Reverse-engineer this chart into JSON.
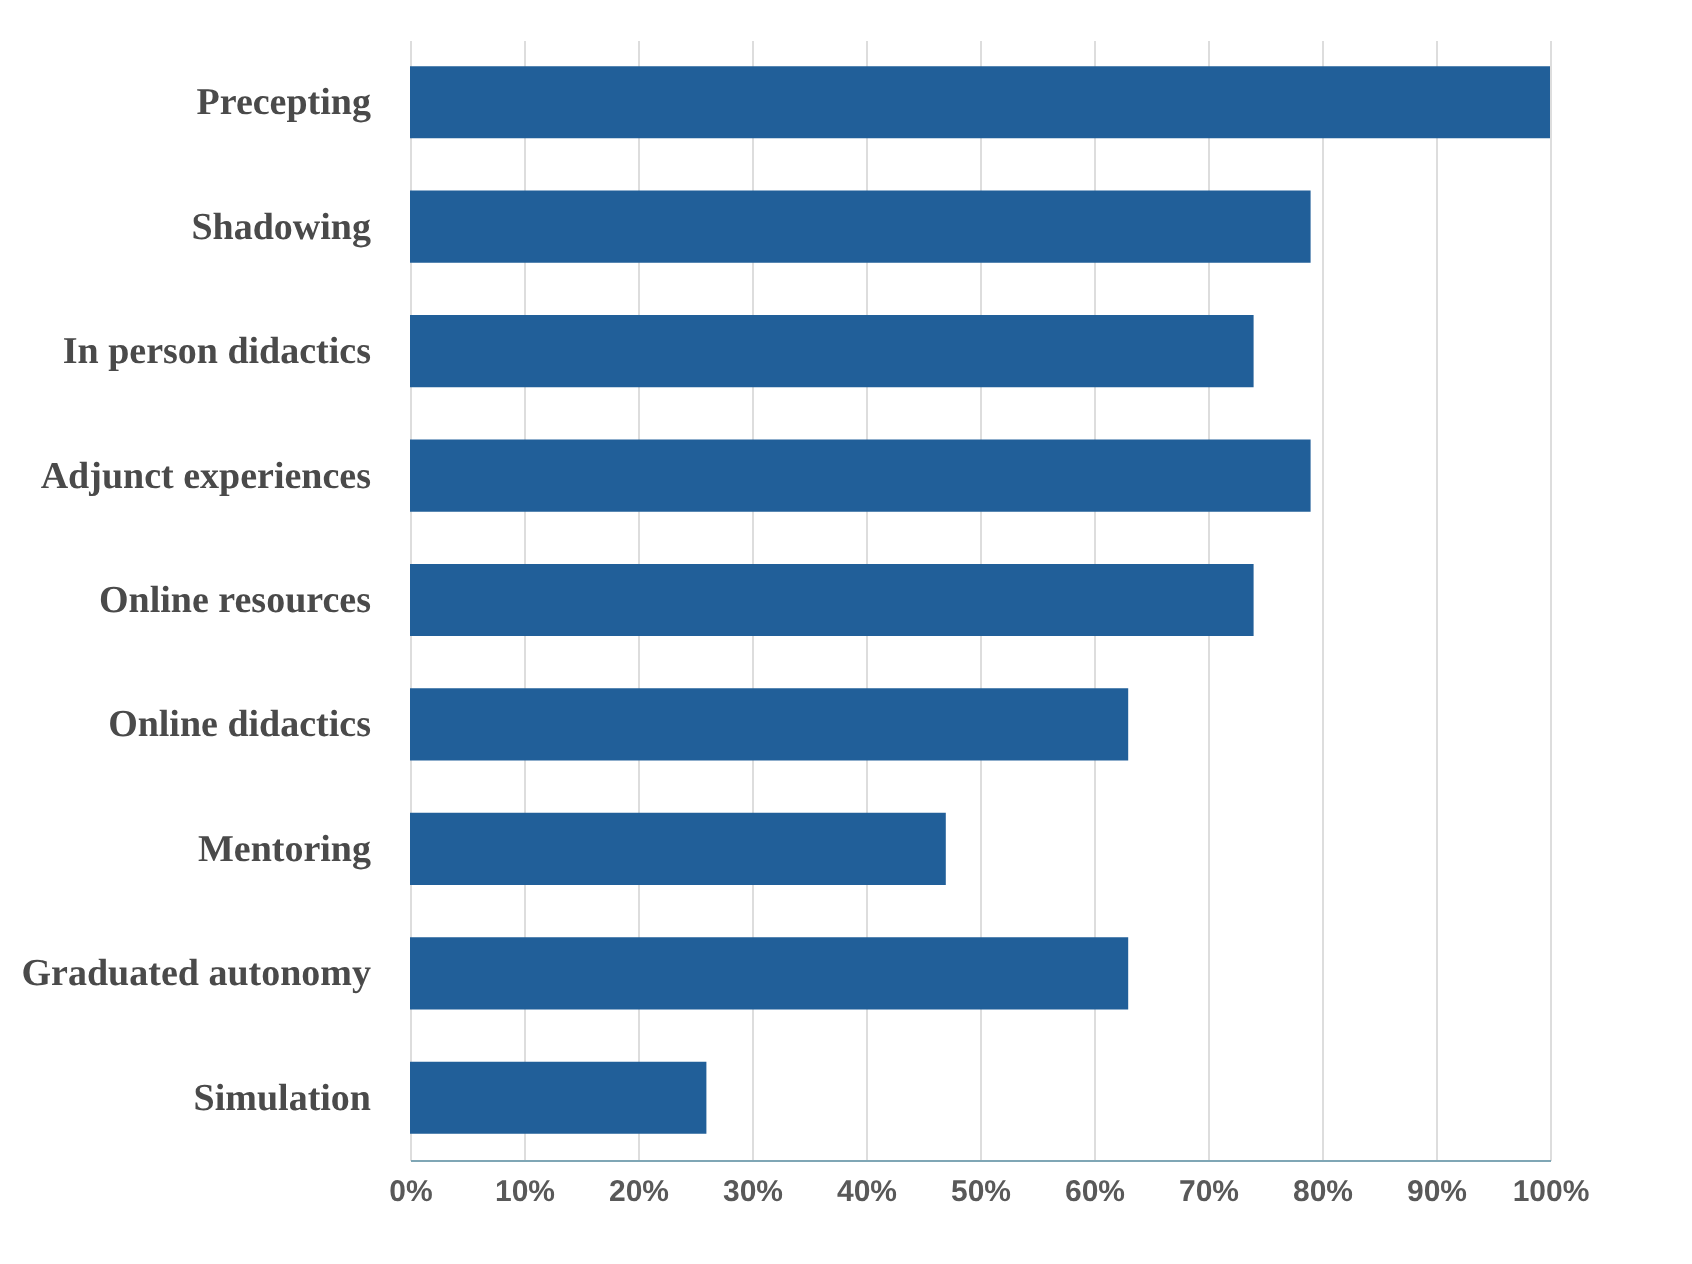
{
  "chart_data": {
    "type": "bar",
    "orientation": "horizontal",
    "categories": [
      "Precepting",
      "Shadowing",
      "In person didactics",
      "Adjunct experiences",
      "Online resources",
      "Online didactics",
      "Mentoring",
      "Graduated autonomy",
      "Simulation"
    ],
    "values": [
      100,
      79,
      74,
      79,
      74,
      63,
      47,
      63,
      26
    ],
    "color": "#215f99",
    "xlim": [
      0,
      100
    ],
    "xticks": [
      {
        "value": 0,
        "label": "0%"
      },
      {
        "value": 10,
        "label": "10%"
      },
      {
        "value": 20,
        "label": "20%"
      },
      {
        "value": 30,
        "label": "30%"
      },
      {
        "value": 40,
        "label": "40%"
      },
      {
        "value": 50,
        "label": "50%"
      },
      {
        "value": 60,
        "label": "60%"
      },
      {
        "value": 70,
        "label": "70%"
      },
      {
        "value": 80,
        "label": "80%"
      },
      {
        "value": 90,
        "label": "90%"
      },
      {
        "value": 100,
        "label": "100%"
      }
    ],
    "grid": "x"
  }
}
